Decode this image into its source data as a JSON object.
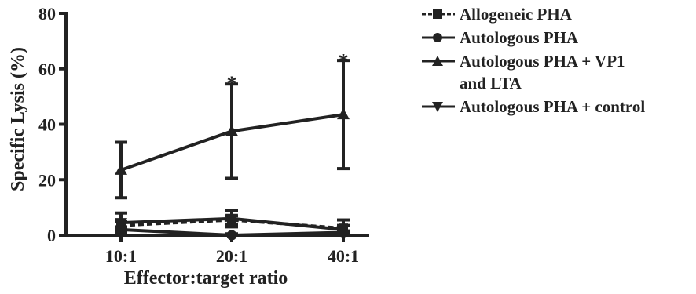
{
  "chart_data": {
    "type": "line",
    "title": "",
    "xlabel": "Effector:target ratio",
    "ylabel": "Specific Lysis (%)",
    "categories": [
      "10:1",
      "20:1",
      "40:1"
    ],
    "ylim": [
      0,
      80
    ],
    "yticks": [
      0,
      20,
      40,
      60,
      80
    ],
    "grid": false,
    "legend_position": "right",
    "series": [
      {
        "name": "Allogeneic PHA",
        "marker": "square",
        "line": "dashed",
        "values": [
          3.5,
          5.5,
          2.5
        ],
        "err": [
          1.5,
          1.5,
          1.0
        ]
      },
      {
        "name": "Autologous PHA",
        "marker": "circle",
        "line": "solid",
        "values": [
          2.0,
          0,
          1.0
        ],
        "err": [
          1.0,
          0.5,
          0.5
        ]
      },
      {
        "name": "Autologous PHA + VP1\nand LTA",
        "marker": "triangle-up",
        "line": "solid",
        "values": [
          23.5,
          37.5,
          43.5
        ],
        "err": [
          10,
          17,
          19.5
        ]
      },
      {
        "name": "Autologous PHA + control",
        "marker": "triangle-down",
        "line": "solid",
        "values": [
          4.5,
          6.0,
          2.0
        ],
        "err": [
          3.5,
          3.0,
          3.5
        ]
      }
    ],
    "annotations": [
      {
        "x": "20:1",
        "y": 58,
        "text": "*"
      },
      {
        "x": "40:1",
        "y": 66,
        "text": "*"
      }
    ]
  }
}
